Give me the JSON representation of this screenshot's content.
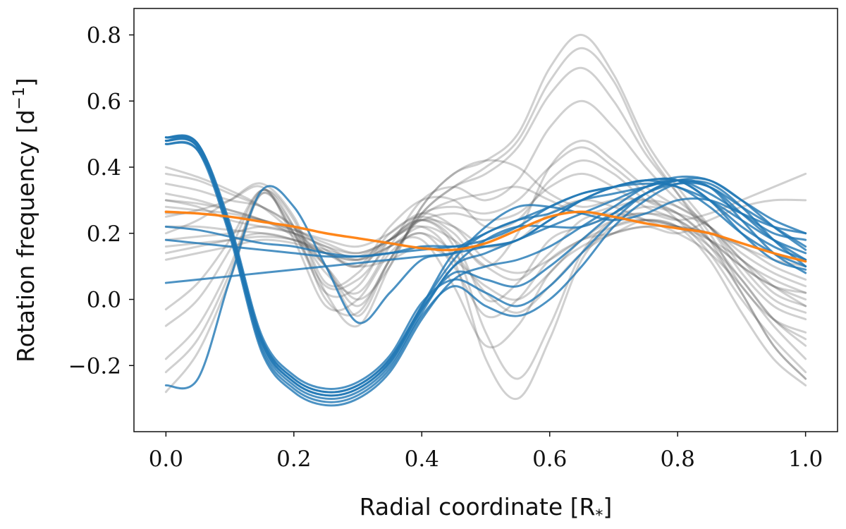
{
  "chart_data": {
    "type": "line",
    "title": "",
    "xlabel": "Radial coordinate [R",
    "xlabel_sub": "*",
    "xlabel_close": "]",
    "ylabel": "Rotation frequency [d",
    "ylabel_sup": "−1",
    "ylabel_close": "]",
    "xlim": [
      -0.05,
      1.05
    ],
    "ylim": [
      -0.4,
      0.88
    ],
    "xticks": [
      0.0,
      0.2,
      0.4,
      0.6,
      0.8,
      1.0
    ],
    "xtick_labels": [
      "0.0",
      "0.2",
      "0.4",
      "0.6",
      "0.8",
      "1.0"
    ],
    "yticks": [
      -0.2,
      0.0,
      0.2,
      0.4,
      0.6,
      0.8
    ],
    "ytick_labels": [
      "−0.2",
      "0.0",
      "0.2",
      "0.4",
      "0.6",
      "0.8"
    ],
    "grid": false,
    "legend": "none",
    "colors": {
      "gray": "#555555",
      "blue": "#1f77b4",
      "orange": "#ff7f0e",
      "axis": "#111111"
    },
    "x": [
      0.0,
      0.05,
      0.1,
      0.15,
      0.2,
      0.25,
      0.3,
      0.35,
      0.4,
      0.45,
      0.5,
      0.55,
      0.6,
      0.65,
      0.7,
      0.75,
      0.8,
      0.85,
      0.9,
      0.95,
      1.0
    ],
    "series": [
      {
        "name": "gray-1",
        "group": "gray",
        "values": [
          0.3,
          0.29,
          0.27,
          0.24,
          0.19,
          0.1,
          0.0,
          0.1,
          0.28,
          0.38,
          0.42,
          0.5,
          0.7,
          0.8,
          0.68,
          0.48,
          0.34,
          0.22,
          0.08,
          -0.02,
          -0.06
        ]
      },
      {
        "name": "gray-2",
        "group": "gray",
        "values": [
          0.4,
          0.37,
          0.33,
          0.28,
          0.2,
          0.1,
          -0.05,
          0.12,
          0.26,
          0.34,
          0.38,
          0.46,
          0.62,
          0.7,
          0.6,
          0.44,
          0.32,
          0.2,
          0.04,
          -0.06,
          -0.1
        ]
      },
      {
        "name": "gray-3",
        "group": "gray",
        "values": [
          0.25,
          0.27,
          0.3,
          0.34,
          0.22,
          0.08,
          0.02,
          0.16,
          0.3,
          0.34,
          0.3,
          0.36,
          0.52,
          0.6,
          0.52,
          0.4,
          0.3,
          0.22,
          0.1,
          0.0,
          -0.04
        ]
      },
      {
        "name": "gray-4",
        "group": "gray",
        "values": [
          0.2,
          0.24,
          0.3,
          0.35,
          0.25,
          0.05,
          0.08,
          0.2,
          0.25,
          0.2,
          0.1,
          0.2,
          0.4,
          0.48,
          0.42,
          0.34,
          0.28,
          0.22,
          0.12,
          0.02,
          -0.02
        ]
      },
      {
        "name": "gray-5",
        "group": "gray",
        "values": [
          0.35,
          0.33,
          0.3,
          0.28,
          0.22,
          0.15,
          0.1,
          0.22,
          0.3,
          0.3,
          0.22,
          0.24,
          0.36,
          0.42,
          0.38,
          0.3,
          0.26,
          0.18,
          0.06,
          -0.06,
          -0.12
        ]
      },
      {
        "name": "gray-6",
        "group": "gray",
        "values": [
          -0.03,
          0.05,
          0.18,
          0.33,
          0.24,
          0.02,
          -0.08,
          0.1,
          0.28,
          0.38,
          0.42,
          0.4,
          0.32,
          0.28,
          0.3,
          0.3,
          0.26,
          0.18,
          0.1,
          0.04,
          0.0
        ]
      },
      {
        "name": "gray-7",
        "group": "gray",
        "values": [
          -0.08,
          0.0,
          0.15,
          0.33,
          0.22,
          0.0,
          -0.04,
          0.12,
          0.25,
          0.3,
          0.32,
          0.34,
          0.3,
          0.26,
          0.28,
          0.3,
          0.28,
          0.22,
          0.12,
          0.06,
          0.02
        ]
      },
      {
        "name": "gray-8",
        "group": "gray",
        "values": [
          -0.18,
          -0.08,
          0.1,
          0.32,
          0.2,
          0.02,
          0.04,
          0.18,
          0.24,
          0.18,
          0.0,
          0.05,
          0.18,
          0.22,
          0.25,
          0.28,
          0.26,
          0.22,
          0.14,
          0.08,
          0.04
        ]
      },
      {
        "name": "gray-9",
        "group": "gray",
        "values": [
          -0.22,
          -0.12,
          0.08,
          0.33,
          0.18,
          -0.02,
          0.0,
          0.14,
          0.2,
          0.1,
          -0.05,
          0.0,
          0.12,
          0.18,
          0.22,
          0.24,
          0.22,
          0.2,
          0.16,
          0.1,
          0.06
        ]
      },
      {
        "name": "gray-10",
        "group": "gray",
        "values": [
          -0.28,
          -0.16,
          0.06,
          0.32,
          0.2,
          0.04,
          0.06,
          0.16,
          0.18,
          0.04,
          -0.14,
          -0.08,
          0.08,
          0.16,
          0.2,
          0.24,
          0.22,
          0.16,
          0.06,
          -0.06,
          -0.14
        ]
      },
      {
        "name": "gray-11",
        "group": "gray",
        "values": [
          0.3,
          0.28,
          0.24,
          0.22,
          0.2,
          0.16,
          0.14,
          0.18,
          0.24,
          0.22,
          0.16,
          0.18,
          0.26,
          0.3,
          0.28,
          0.24,
          0.2,
          0.14,
          0.04,
          -0.08,
          -0.18
        ]
      },
      {
        "name": "gray-12",
        "group": "gray",
        "values": [
          0.32,
          0.3,
          0.27,
          0.24,
          0.2,
          0.14,
          0.1,
          0.18,
          0.26,
          0.28,
          0.26,
          0.3,
          0.4,
          0.46,
          0.4,
          0.32,
          0.24,
          0.14,
          0.0,
          -0.12,
          -0.22
        ]
      },
      {
        "name": "gray-13",
        "group": "gray",
        "values": [
          0.18,
          0.19,
          0.2,
          0.22,
          0.2,
          0.16,
          0.12,
          0.16,
          0.22,
          0.18,
          0.1,
          0.06,
          0.14,
          0.24,
          0.26,
          0.24,
          0.22,
          0.18,
          0.12,
          0.04,
          -0.02
        ]
      },
      {
        "name": "gray-14",
        "group": "gray",
        "values": [
          0.38,
          0.36,
          0.32,
          0.28,
          0.22,
          0.1,
          -0.02,
          0.12,
          0.26,
          0.34,
          0.4,
          0.48,
          0.66,
          0.76,
          0.66,
          0.46,
          0.32,
          0.18,
          0.02,
          -0.14,
          -0.24
        ]
      },
      {
        "name": "gray-15",
        "group": "gray",
        "values": [
          0.26,
          0.26,
          0.25,
          0.24,
          0.21,
          0.18,
          0.16,
          0.2,
          0.26,
          0.22,
          0.12,
          0.08,
          0.12,
          0.18,
          0.2,
          0.22,
          0.2,
          0.24,
          0.28,
          0.3,
          0.3
        ]
      },
      {
        "name": "gray-16",
        "group": "gray",
        "values": [
          0.22,
          0.22,
          0.21,
          0.2,
          0.18,
          0.14,
          0.1,
          0.12,
          0.16,
          0.12,
          0.04,
          0.0,
          0.08,
          0.18,
          0.24,
          0.26,
          0.24,
          0.26,
          0.3,
          0.34,
          0.38
        ]
      },
      {
        "name": "gray-17",
        "group": "gray",
        "values": [
          0.14,
          0.16,
          0.18,
          0.2,
          0.18,
          0.14,
          0.12,
          0.18,
          0.24,
          0.16,
          -0.1,
          -0.24,
          -0.08,
          0.14,
          0.24,
          0.26,
          0.24,
          0.16,
          0.02,
          -0.14,
          -0.24
        ]
      },
      {
        "name": "gray-18",
        "group": "gray",
        "values": [
          0.16,
          0.17,
          0.18,
          0.19,
          0.18,
          0.15,
          0.13,
          0.18,
          0.22,
          0.12,
          -0.18,
          -0.3,
          -0.12,
          0.12,
          0.22,
          0.24,
          0.22,
          0.12,
          -0.04,
          -0.18,
          -0.26
        ]
      },
      {
        "name": "gray-19",
        "group": "gray",
        "values": [
          0.28,
          0.27,
          0.26,
          0.24,
          0.21,
          0.17,
          0.14,
          0.18,
          0.24,
          0.26,
          0.24,
          0.26,
          0.34,
          0.38,
          0.34,
          0.28,
          0.24,
          0.18,
          0.1,
          0.04,
          0.02
        ]
      },
      {
        "name": "gray-20",
        "group": "gray",
        "values": [
          0.12,
          0.14,
          0.16,
          0.18,
          0.17,
          0.14,
          0.12,
          0.16,
          0.2,
          0.14,
          0.02,
          -0.04,
          0.04,
          0.14,
          0.2,
          0.22,
          0.22,
          0.2,
          0.16,
          0.12,
          0.1
        ]
      },
      {
        "name": "blue-1",
        "group": "blue",
        "values": [
          0.48,
          0.47,
          0.22,
          -0.12,
          -0.24,
          -0.28,
          -0.26,
          -0.18,
          -0.02,
          0.14,
          0.2,
          0.24,
          0.26,
          0.3,
          0.32,
          0.34,
          0.36,
          0.32,
          0.26,
          0.2,
          0.18
        ]
      },
      {
        "name": "blue-2",
        "group": "blue",
        "values": [
          0.49,
          0.46,
          0.2,
          -0.14,
          -0.26,
          -0.3,
          -0.28,
          -0.2,
          -0.04,
          0.1,
          0.14,
          0.18,
          0.22,
          0.26,
          0.3,
          0.34,
          0.36,
          0.34,
          0.28,
          0.22,
          0.16
        ]
      },
      {
        "name": "blue-3",
        "group": "blue",
        "values": [
          0.47,
          0.45,
          0.19,
          -0.16,
          -0.28,
          -0.32,
          -0.3,
          -0.22,
          -0.06,
          0.06,
          0.1,
          0.12,
          0.16,
          0.22,
          0.28,
          0.34,
          0.37,
          0.36,
          0.3,
          0.24,
          0.2
        ]
      },
      {
        "name": "blue-4",
        "group": "blue",
        "values": [
          0.48,
          0.46,
          0.21,
          -0.13,
          -0.25,
          -0.29,
          -0.27,
          -0.19,
          -0.03,
          0.08,
          0.06,
          0.04,
          0.1,
          0.18,
          0.26,
          0.32,
          0.35,
          0.34,
          0.26,
          0.18,
          0.12
        ]
      },
      {
        "name": "blue-5",
        "group": "blue",
        "values": [
          0.49,
          0.47,
          0.23,
          -0.11,
          -0.23,
          -0.27,
          -0.25,
          -0.17,
          -0.01,
          0.06,
          0.02,
          -0.02,
          0.04,
          0.14,
          0.24,
          0.32,
          0.36,
          0.34,
          0.24,
          0.14,
          0.08
        ]
      },
      {
        "name": "blue-6",
        "group": "blue",
        "values": [
          0.48,
          0.46,
          0.2,
          -0.15,
          -0.27,
          -0.31,
          -0.29,
          -0.21,
          -0.05,
          0.04,
          -0.02,
          -0.05,
          0.0,
          0.1,
          0.22,
          0.3,
          0.35,
          0.35,
          0.28,
          0.18,
          0.1
        ]
      },
      {
        "name": "blue-7",
        "group": "blue",
        "values": [
          0.47,
          0.45,
          0.22,
          -0.12,
          -0.24,
          -0.28,
          -0.26,
          -0.18,
          -0.02,
          0.12,
          0.22,
          0.28,
          0.28,
          0.26,
          0.24,
          0.26,
          0.3,
          0.3,
          0.26,
          0.22,
          0.2
        ]
      },
      {
        "name": "blue-8",
        "group": "blue",
        "values": [
          0.49,
          0.47,
          0.21,
          -0.13,
          -0.25,
          -0.29,
          -0.27,
          -0.19,
          -0.03,
          0.1,
          0.18,
          0.22,
          0.22,
          0.22,
          0.26,
          0.32,
          0.36,
          0.36,
          0.3,
          0.22,
          0.15
        ]
      },
      {
        "name": "blue-9",
        "group": "blue",
        "values": [
          -0.26,
          -0.24,
          0.06,
          0.33,
          0.28,
          0.1,
          -0.07,
          0.02,
          0.12,
          0.14,
          0.2,
          0.24,
          0.28,
          0.32,
          0.34,
          0.36,
          0.34,
          0.3,
          0.24,
          0.18,
          0.14
        ]
      },
      {
        "name": "blue-10",
        "group": "blue",
        "values": [
          0.22,
          0.21,
          0.19,
          0.17,
          0.16,
          0.14,
          0.13,
          0.14,
          0.16,
          0.16,
          0.16,
          0.18,
          0.24,
          0.3,
          0.34,
          0.36,
          0.36,
          0.3,
          0.22,
          0.16,
          0.12
        ]
      },
      {
        "name": "blue-11",
        "group": "blue",
        "values": [
          0.18,
          0.17,
          0.16,
          0.15,
          0.14,
          0.13,
          0.13,
          0.14,
          0.15,
          0.16,
          0.18,
          0.22,
          0.28,
          0.32,
          0.34,
          0.35,
          0.34,
          0.28,
          0.2,
          0.14,
          0.1
        ]
      },
      {
        "name": "blue-12",
        "group": "blue",
        "values": [
          0.05,
          0.06,
          0.07,
          0.08,
          0.09,
          0.1,
          0.11,
          0.12,
          0.13,
          0.14,
          0.16,
          0.18,
          0.24,
          0.3,
          0.34,
          0.36,
          0.36,
          0.3,
          0.2,
          0.12,
          0.09
        ]
      },
      {
        "name": "orange",
        "group": "orange",
        "values": [
          0.265,
          0.26,
          0.25,
          0.235,
          0.22,
          0.2,
          0.185,
          0.17,
          0.155,
          0.15,
          0.17,
          0.21,
          0.25,
          0.265,
          0.25,
          0.23,
          0.215,
          0.2,
          0.17,
          0.14,
          0.115
        ]
      }
    ]
  }
}
